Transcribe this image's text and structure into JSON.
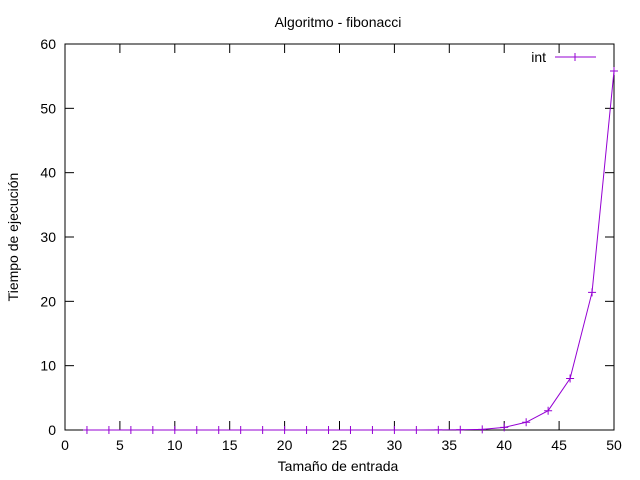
{
  "chart_data": {
    "type": "line",
    "title": "Algoritmo - fibonacci",
    "xlabel": "Tamaño de entrada",
    "ylabel": "Tiempo de ejecución",
    "xlim": [
      0,
      50
    ],
    "ylim": [
      0,
      60
    ],
    "xticks": [
      0,
      5,
      10,
      15,
      20,
      25,
      30,
      35,
      40,
      45,
      50
    ],
    "yticks": [
      0,
      10,
      20,
      30,
      40,
      50,
      60
    ],
    "grid": false,
    "legend_position": "top-right",
    "series": [
      {
        "name": "int",
        "color": "#9400d3",
        "marker": "plus",
        "x": [
          2,
          4,
          6,
          8,
          10,
          12,
          14,
          16,
          18,
          20,
          22,
          24,
          26,
          28,
          30,
          32,
          34,
          36,
          38,
          40,
          42,
          44,
          46,
          48,
          50
        ],
        "y": [
          0,
          0,
          0,
          0,
          0,
          0,
          0,
          0,
          0,
          0,
          0,
          0,
          0,
          0,
          0,
          0,
          0.01,
          0.03,
          0.1,
          0.4,
          1.2,
          3.0,
          8.0,
          21.4,
          55.8
        ]
      }
    ]
  }
}
